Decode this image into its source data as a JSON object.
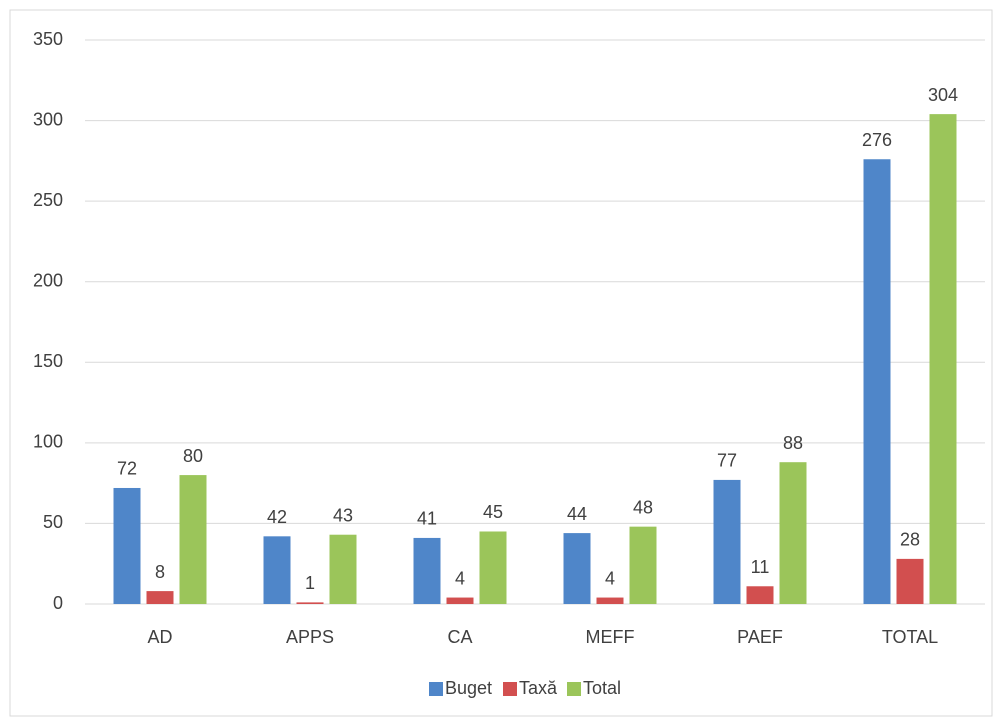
{
  "chart_data": {
    "type": "bar",
    "categories": [
      "AD",
      "APPS",
      "CA",
      "MEFF",
      "PAEF",
      "TOTAL"
    ],
    "series": [
      {
        "name": "Buget",
        "color": "#4f86c9",
        "values": [
          72,
          42,
          41,
          44,
          77,
          276
        ]
      },
      {
        "name": "Taxă",
        "color": "#d24f4f",
        "values": [
          8,
          1,
          4,
          4,
          11,
          28
        ]
      },
      {
        "name": "Total",
        "color": "#9bc55a",
        "values": [
          80,
          43,
          45,
          48,
          88,
          304
        ]
      }
    ],
    "ylim": [
      0,
      350
    ],
    "yticks": [
      0,
      50,
      100,
      150,
      200,
      250,
      300,
      350
    ],
    "grid": true,
    "legend": "bottom"
  }
}
